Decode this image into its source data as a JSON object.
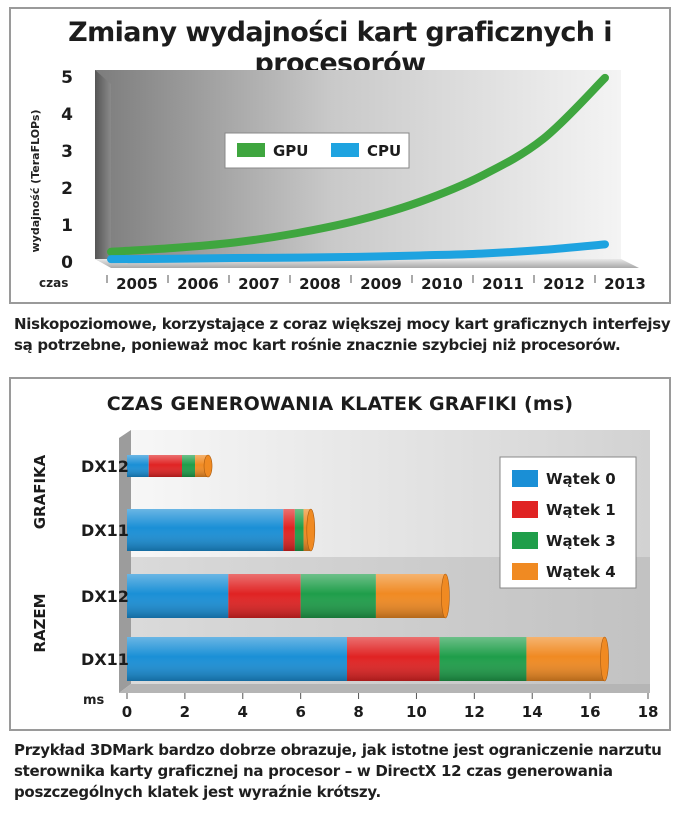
{
  "chart_data": [
    {
      "type": "line",
      "title": "Zmiany wydajności kart graficznych i procesorów",
      "xlabel": "czas",
      "ylabel": "wydajność (TeraFLOPs)",
      "x": [
        "2005",
        "2006",
        "2007",
        "2008",
        "2009",
        "2010",
        "2011",
        "2012",
        "2013"
      ],
      "ylim": [
        0,
        5
      ],
      "yticks": [
        "0",
        "1",
        "2",
        "3",
        "4",
        "5"
      ],
      "legend_position": "upper-center",
      "series": [
        {
          "name": "GPU",
          "color": "#3fa63f",
          "values": [
            0.25,
            0.35,
            0.5,
            0.75,
            1.1,
            1.6,
            2.3,
            3.3,
            4.95
          ]
        },
        {
          "name": "CPU",
          "color": "#1ea3e0",
          "values": [
            0.05,
            0.06,
            0.08,
            0.09,
            0.11,
            0.15,
            0.2,
            0.3,
            0.45
          ]
        }
      ]
    },
    {
      "type": "bar",
      "orientation": "horizontal",
      "stacked": true,
      "title": "CZAS GENEROWANIA KLATEK GRAFIKI (ms)",
      "xlabel": "ms",
      "xlim": [
        0,
        18
      ],
      "xticks": [
        "0",
        "2",
        "4",
        "6",
        "8",
        "10",
        "12",
        "14",
        "16",
        "18"
      ],
      "groups": [
        {
          "label": "GRAFIKA",
          "categories": [
            "DX12",
            "DX11"
          ]
        },
        {
          "label": "RAZEM",
          "categories": [
            "DX12",
            "DX11"
          ]
        }
      ],
      "categories": [
        "DX12",
        "DX11",
        "DX12",
        "DX11"
      ],
      "legend_position": "right",
      "series": [
        {
          "name": "Wątek 0",
          "color": "#1a8fd6",
          "values": [
            0.75,
            5.4,
            3.5,
            7.6
          ]
        },
        {
          "name": "Wątek 1",
          "color": "#e02323",
          "values": [
            1.15,
            0.4,
            2.5,
            3.2
          ]
        },
        {
          "name": "Wątek 3",
          "color": "#1f9e4a",
          "values": [
            0.45,
            0.3,
            2.6,
            3.0
          ]
        },
        {
          "name": "Wątek 4",
          "color": "#f08a22",
          "values": [
            0.45,
            0.25,
            2.4,
            2.7
          ]
        }
      ]
    }
  ],
  "captions": {
    "first": "Niskopoziomowe, korzystające z coraz większej mocy kart graficznych interfejsy są potrzebne, ponieważ moc kart rośnie znacznie szybciej niż procesorów.",
    "second": "Przykład 3DMark bardzo dobrze obrazuje, jak istotne jest ograniczenie narzutu sterownika karty graficznej na procesor – w DirectX 12 czas generowania poszczególnych klatek jest wyraźnie krótszy."
  }
}
